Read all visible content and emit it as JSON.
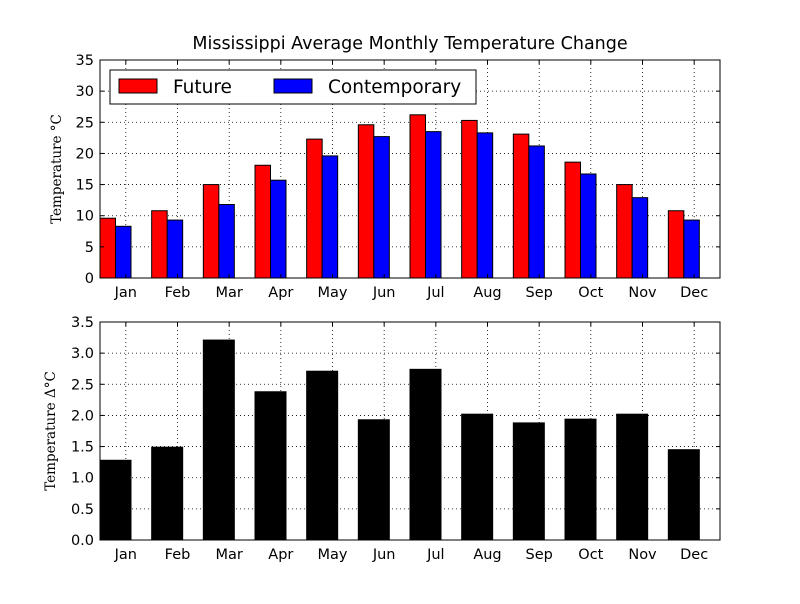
{
  "figure_title": "Mississippi Average Monthly Temperature Change",
  "colors": {
    "future": "#ff0000",
    "contemporary": "#0000ff",
    "delta": "#000000"
  },
  "chart_data": [
    {
      "type": "bar",
      "title": "Mississippi Average Monthly Temperature Change",
      "ylabel": "Temperature  °C",
      "categories": [
        "Jan",
        "Feb",
        "Mar",
        "Apr",
        "May",
        "Jun",
        "Jul",
        "Aug",
        "Sep",
        "Oct",
        "Nov",
        "Dec"
      ],
      "series": [
        {
          "name": "Future",
          "values": [
            9.6,
            10.8,
            15.0,
            18.1,
            22.3,
            24.6,
            26.2,
            25.3,
            23.1,
            18.6,
            15.0,
            10.8
          ]
        },
        {
          "name": "Contemporary",
          "values": [
            8.3,
            9.3,
            11.8,
            15.7,
            19.6,
            22.7,
            23.5,
            23.3,
            21.2,
            16.7,
            12.9,
            9.3
          ]
        }
      ],
      "ylim": [
        0,
        35
      ],
      "yticks": [
        "0",
        "5",
        "10",
        "15",
        "20",
        "25",
        "30",
        "35"
      ],
      "grid": true,
      "legend": "top-left"
    },
    {
      "type": "bar",
      "ylabel": "Temperature  Δ°C",
      "categories": [
        "Jan",
        "Feb",
        "Mar",
        "Apr",
        "May",
        "Jun",
        "Jul",
        "Aug",
        "Sep",
        "Oct",
        "Nov",
        "Dec"
      ],
      "values": [
        1.28,
        1.49,
        3.21,
        2.38,
        2.71,
        1.93,
        2.74,
        2.02,
        1.88,
        1.94,
        2.02,
        1.45
      ],
      "ylim": [
        0,
        3.5
      ],
      "yticks": [
        "0.0",
        "0.5",
        "1.0",
        "1.5",
        "2.0",
        "2.5",
        "3.0",
        "3.5"
      ],
      "grid": true
    }
  ]
}
